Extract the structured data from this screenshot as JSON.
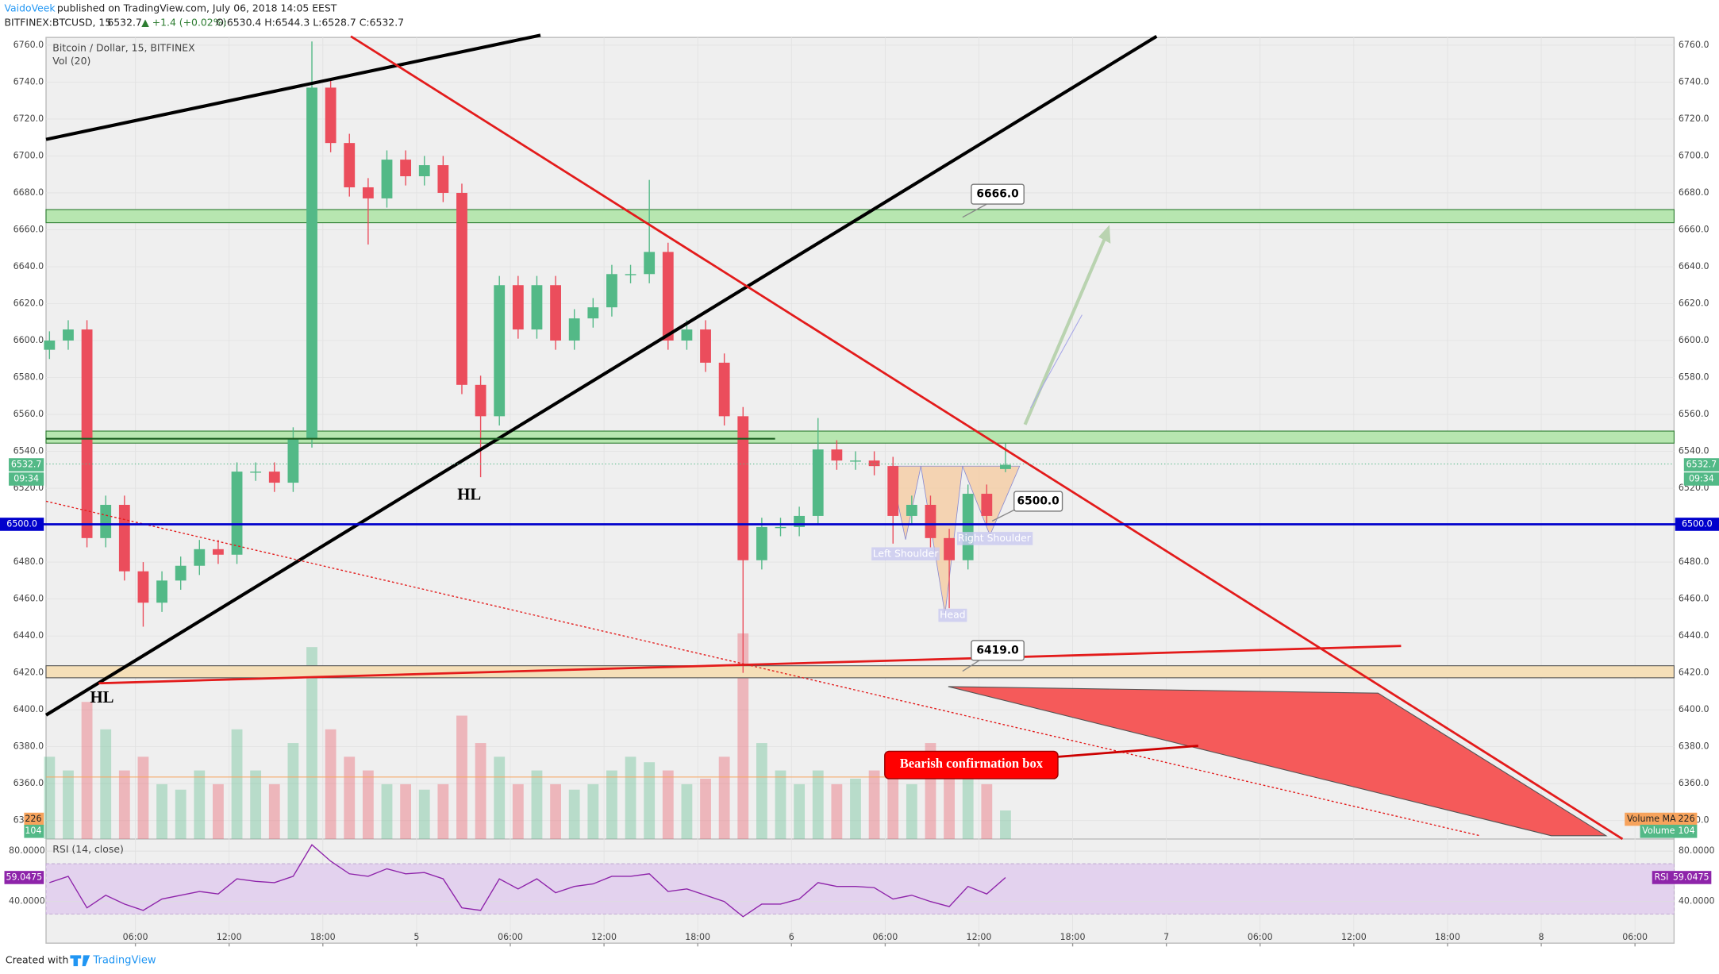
{
  "header": {
    "author": "VaidoVeek",
    "published": "published on TradingView.com, July 06, 2018 14:05 EEST",
    "symbol": "BITFINEX:BTCUSD, 15",
    "quote": "6532.7",
    "change": "▲ +1.4 (+0.02%)",
    "ohlc": "O:6530.4 H:6544.3 L:6528.7 C:6532.7"
  },
  "chart_data": [
    {
      "type": "candlestick",
      "title": "Bitcoin / Dollar, 15, BITFINEX",
      "up_color": "#53b987",
      "down_color": "#eb4d5c",
      "grid": true,
      "x": [
        0.5,
        1.7,
        2.9,
        4.1,
        5.3,
        6.5,
        7.7,
        8.9,
        10.1,
        11.3,
        12.5,
        13.7,
        14.9,
        16.1,
        17.3,
        18.5,
        19.7,
        20.9,
        22.1,
        23.3,
        24.5,
        25.7,
        26.9,
        28.1,
        29.3,
        30.5,
        31.7,
        32.9,
        34.1,
        35.3,
        36.5,
        37.7,
        38.9,
        40.1,
        41.3,
        42.5,
        43.7,
        44.9,
        46.1,
        47.3,
        48.5,
        49.7,
        50.9,
        52.1,
        53.3,
        54.5,
        55.7,
        56.9,
        58.1,
        59.3,
        60.5,
        61.7
      ],
      "open": [
        6595,
        6600,
        6606,
        6493,
        6511,
        6475,
        6458,
        6470,
        6478,
        6487,
        6484,
        6529,
        6529,
        6523,
        6547,
        6737,
        6707,
        6683,
        6677,
        6698,
        6689,
        6695,
        6680,
        6576,
        6559,
        6630,
        6606,
        6630,
        6600,
        6612,
        6618,
        6636,
        6636,
        6648,
        6600,
        6606,
        6588,
        6559,
        6481,
        6499,
        6499,
        6505,
        6541,
        6535,
        6535,
        6532,
        6505,
        6511,
        6493,
        6481,
        6517,
        6530.4
      ],
      "high": [
        6605,
        6611,
        6611,
        6516,
        6516,
        6480,
        6475,
        6483,
        6492,
        6492,
        6534,
        6534,
        6534,
        6553,
        6762,
        6742,
        6712,
        6688,
        6703,
        6703,
        6700,
        6700,
        6685,
        6581,
        6635,
        6635,
        6635,
        6635,
        6617,
        6623,
        6641,
        6641,
        6687,
        6653,
        6611,
        6611,
        6593,
        6564,
        6504,
        6504,
        6510,
        6558,
        6546,
        6540,
        6540,
        6537,
        6516,
        6516,
        6498,
        6522,
        6522,
        6544.3
      ],
      "low": [
        6590,
        6595,
        6488,
        6488,
        6470,
        6445,
        6453,
        6465,
        6473,
        6479,
        6479,
        6524,
        6518,
        6518,
        6542,
        6702,
        6678,
        6652,
        6672,
        6684,
        6684,
        6675,
        6571,
        6526,
        6554,
        6601,
        6601,
        6595,
        6595,
        6607,
        6613,
        6631,
        6631,
        6595,
        6595,
        6583,
        6554,
        6420,
        6476,
        6494,
        6494,
        6500,
        6530,
        6530,
        6527,
        6490,
        6500,
        6488,
        6455,
        6476,
        6500,
        6528.7
      ],
      "close": [
        6600,
        6606,
        6493,
        6511,
        6475,
        6458,
        6470,
        6478,
        6487,
        6484,
        6529,
        6529,
        6523,
        6547,
        6737,
        6707,
        6683,
        6677,
        6698,
        6689,
        6695,
        6680,
        6576,
        6559,
        6630,
        6606,
        6630,
        6600,
        6612,
        6618,
        6636,
        6636,
        6648,
        6600,
        6606,
        6588,
        6559,
        6481,
        6499,
        6499,
        6505,
        6541,
        6535,
        6535,
        6532,
        6505,
        6511,
        6493,
        6481,
        6517,
        6505,
        6532.7
      ],
      "countdown": "09:34",
      "xlim": [
        0.28,
        104.5
      ],
      "xticks": [
        {
          "value": 6,
          "label": "06:00"
        },
        {
          "value": 12,
          "label": "12:00"
        },
        {
          "value": 18,
          "label": "18:00"
        },
        {
          "value": 24,
          "label": "5"
        },
        {
          "value": 30,
          "label": "06:00"
        },
        {
          "value": 36,
          "label": "12:00"
        },
        {
          "value": 42,
          "label": "18:00"
        },
        {
          "value": 48,
          "label": "6"
        },
        {
          "value": 54,
          "label": "06:00"
        },
        {
          "value": 60,
          "label": "12:00"
        },
        {
          "value": 66,
          "label": "18:00"
        },
        {
          "value": 72,
          "label": "7"
        },
        {
          "value": 78,
          "label": "06:00"
        },
        {
          "value": 84,
          "label": "12:00"
        },
        {
          "value": 90,
          "label": "18:00"
        },
        {
          "value": 96,
          "label": "8"
        },
        {
          "value": 102,
          "label": "06:00"
        }
      ],
      "ylim": [
        6330,
        6764.2
      ],
      "yticks": [
        {
          "value": 6340,
          "label": "6340.0"
        },
        {
          "value": 6360,
          "label": "6360.0"
        },
        {
          "value": 6380,
          "label": "6380.0"
        },
        {
          "value": 6400,
          "label": "6400.0"
        },
        {
          "value": 6420,
          "label": "6420.0"
        },
        {
          "value": 6440,
          "label": "6440.0"
        },
        {
          "value": 6460,
          "label": "6460.0"
        },
        {
          "value": 6480,
          "label": "6480.0"
        },
        {
          "value": 6500,
          "label": "6500.0"
        },
        {
          "value": 6520,
          "label": "6520.0"
        },
        {
          "value": 6540,
          "label": "6540.0"
        },
        {
          "value": 6560,
          "label": "6560.0"
        },
        {
          "value": 6580,
          "label": "6580.0"
        },
        {
          "value": 6600,
          "label": "6600.0"
        },
        {
          "value": 6620,
          "label": "6620.0"
        },
        {
          "value": 6640,
          "label": "6640.0"
        },
        {
          "value": 6660,
          "label": "6660.0"
        },
        {
          "value": 6680,
          "label": "6680.0"
        },
        {
          "value": 6700,
          "label": "6700.0"
        },
        {
          "value": 6720,
          "label": "6720.0"
        },
        {
          "value": 6740,
          "label": "6740.0"
        },
        {
          "value": 6760,
          "label": "6760.0"
        }
      ]
    },
    {
      "type": "bar",
      "title": "Vol (20)",
      "name": "Volume",
      "ma_name": "Volume MA",
      "ma": 226,
      "values": [
        300,
        250,
        500,
        400,
        250,
        300,
        200,
        180,
        250,
        200,
        400,
        250,
        200,
        350,
        700,
        400,
        300,
        250,
        200,
        200,
        180,
        200,
        450,
        350,
        300,
        200,
        250,
        200,
        180,
        200,
        250,
        300,
        280,
        250,
        200,
        220,
        300,
        750,
        350,
        250,
        200,
        250,
        200,
        220,
        250,
        300,
        200,
        350,
        300,
        250,
        200,
        104
      ],
      "ylim": [
        0,
        1200
      ]
    },
    {
      "type": "line",
      "title": "RSI (14, close)",
      "name": "RSI",
      "color": "#8e24aa",
      "band": [
        30,
        70
      ],
      "values": [
        55,
        60,
        35,
        45,
        38,
        33,
        42,
        45,
        48,
        46,
        58,
        56,
        55,
        60,
        85,
        72,
        62,
        60,
        66,
        62,
        63,
        58,
        35,
        33,
        58,
        50,
        58,
        47,
        52,
        54,
        60,
        60,
        62,
        48,
        50,
        45,
        40,
        28,
        38,
        38,
        42,
        55,
        52,
        52,
        51,
        42,
        45,
        40,
        36,
        52,
        46,
        59.0475
      ],
      "ylim": [
        7,
        89.6
      ],
      "yticks": [
        {
          "value": 40,
          "label": "40.0000"
        },
        {
          "value": 80,
          "label": "80.0000"
        }
      ]
    }
  ],
  "annotations": {
    "hl": [
      "HL",
      "HL"
    ],
    "levels": [
      "6666.0",
      "6500.0",
      "6419.0"
    ],
    "pattern": [
      "Left Shoulder",
      "Head",
      "Right Shoulder"
    ],
    "box": "Bearish confirmation box"
  },
  "footer": {
    "created": "Created with",
    "brand": "TradingView"
  }
}
